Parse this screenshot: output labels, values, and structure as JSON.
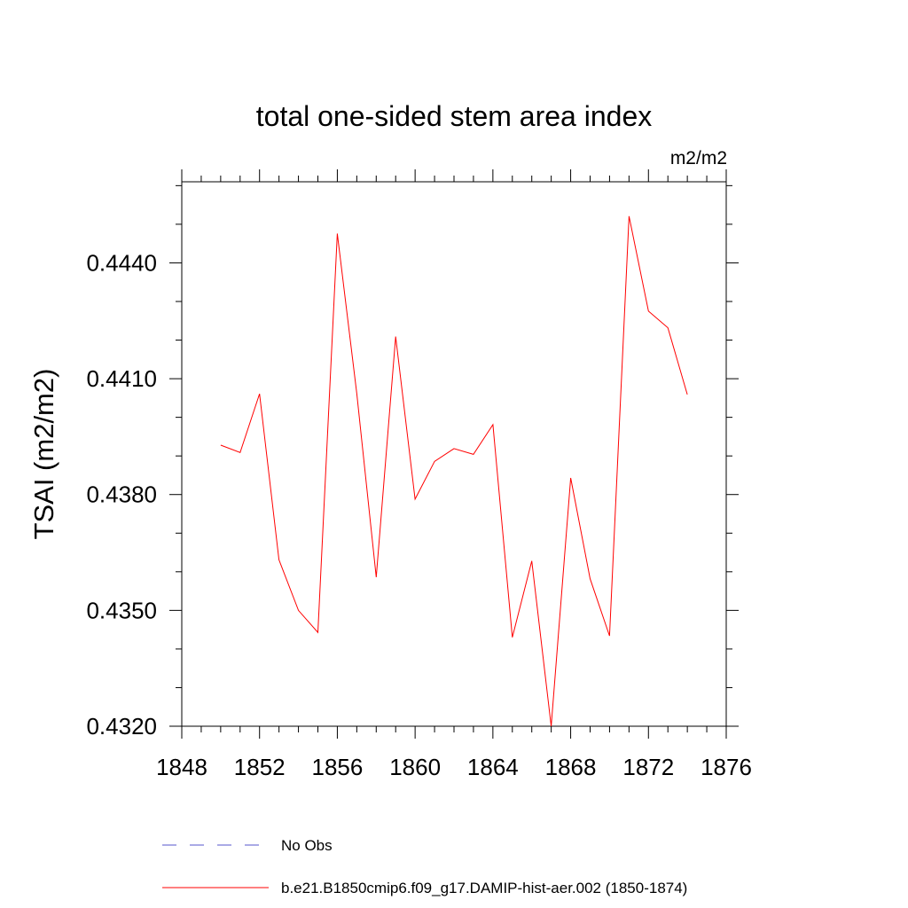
{
  "chart_data": {
    "type": "line",
    "title": "total one-sided stem area index",
    "units_label": "m2/m2",
    "ylabel": "TSAI  (m2/m2)",
    "xlabel": "",
    "xlim": [
      1848,
      1876
    ],
    "ylim": [
      0.432,
      0.4461
    ],
    "x_ticks": [
      1848,
      1852,
      1856,
      1860,
      1864,
      1868,
      1872,
      1876
    ],
    "x_tick_labels": [
      "1848",
      "1852",
      "1856",
      "1860",
      "1864",
      "1868",
      "1872",
      "1876"
    ],
    "y_ticks": [
      0.432,
      0.435,
      0.438,
      0.441,
      0.444
    ],
    "y_tick_labels": [
      "0.4320",
      "0.4350",
      "0.4380",
      "0.4410",
      "0.4440"
    ],
    "grid": false,
    "legend_placement": "bottom",
    "series": [
      {
        "name": "b.e21.B1850cmip6.f09_g17.DAMIP-hist-aer.002 (1850-1874)",
        "color": "#ff0000",
        "style": "solid",
        "x": [
          1850,
          1851,
          1852,
          1853,
          1854,
          1855,
          1856,
          1857,
          1858,
          1859,
          1860,
          1861,
          1862,
          1863,
          1864,
          1865,
          1866,
          1867,
          1868,
          1869,
          1870,
          1871,
          1872,
          1873,
          1874
        ],
        "y": [
          0.43928,
          0.43909,
          0.44061,
          0.43631,
          0.435,
          0.43443,
          0.44476,
          0.44061,
          0.43586,
          0.44209,
          0.43788,
          0.43886,
          0.43919,
          0.43904,
          0.43981,
          0.4343,
          0.43628,
          0.432,
          0.43843,
          0.43582,
          0.43434,
          0.44521,
          0.44275,
          0.44232,
          0.44059
        ]
      }
    ],
    "legend": [
      {
        "label": "No Obs",
        "color": "#5555cc",
        "style": "dashed"
      },
      {
        "label": "b.e21.B1850cmip6.f09_g17.DAMIP-hist-aer.002 (1850-1874)",
        "color": "#ff0000",
        "style": "solid"
      }
    ]
  }
}
